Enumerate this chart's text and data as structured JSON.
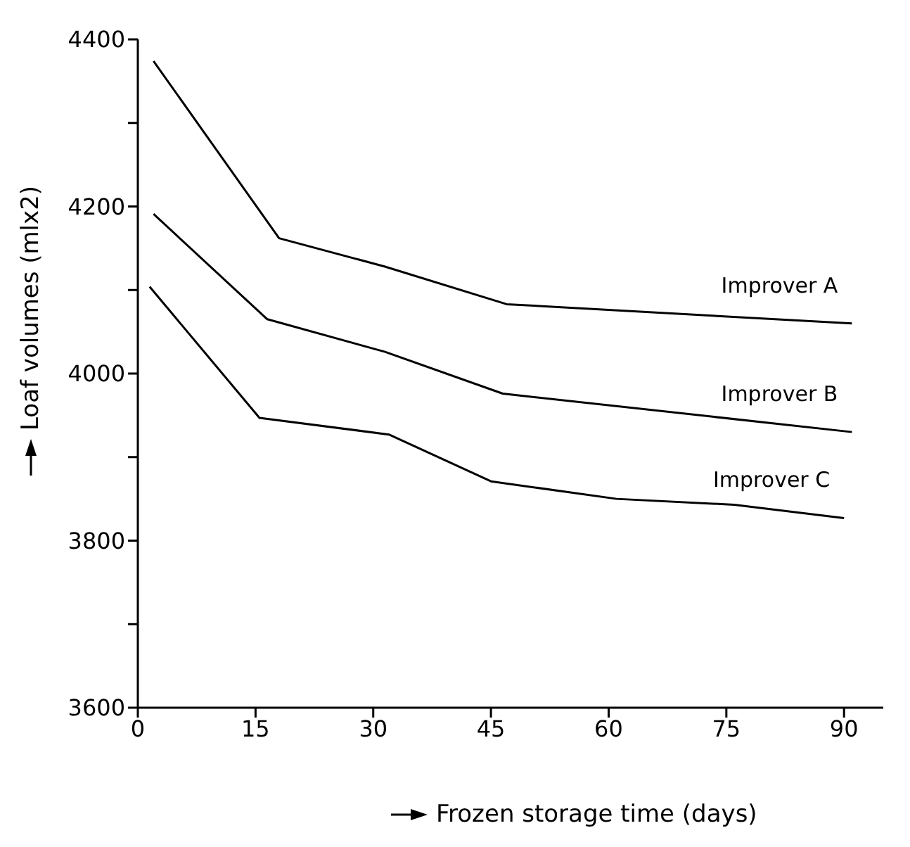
{
  "chart_data": {
    "type": "line",
    "xlabel": "Frozen storage time (days)",
    "ylabel": "Loaf volumes (mlx2)",
    "xlim": [
      0,
      95
    ],
    "xticks": [
      0,
      15,
      30,
      45,
      60,
      75,
      90
    ],
    "ylim": [
      3600,
      4400
    ],
    "yticks": [
      3600,
      {
        "value": 3700,
        "label": null
      },
      3800,
      {
        "value": 3900,
        "label": null
      },
      4000,
      {
        "value": 4100,
        "label": null
      },
      4200,
      {
        "value": 4300,
        "label": null
      },
      4400
    ],
    "grid": false,
    "marker": "none",
    "line_style": "solid",
    "series": [
      {
        "name": "Improver A",
        "color": "#000000",
        "x": [
          2,
          18,
          31.5,
          47,
          91
        ],
        "values": [
          4374,
          4162,
          4128,
          4083,
          4060
        ]
      },
      {
        "name": "Improver B",
        "color": "#000000",
        "x": [
          2,
          16.5,
          31.5,
          46.5,
          91
        ],
        "values": [
          4191,
          4065,
          4026,
          3976,
          3930
        ]
      },
      {
        "name": "Improver C",
        "color": "#000000",
        "x": [
          1.5,
          15.5,
          32,
          45,
          61,
          76,
          90
        ],
        "values": [
          4104,
          3947,
          3927,
          3871,
          3850,
          3843,
          3827
        ]
      }
    ]
  }
}
